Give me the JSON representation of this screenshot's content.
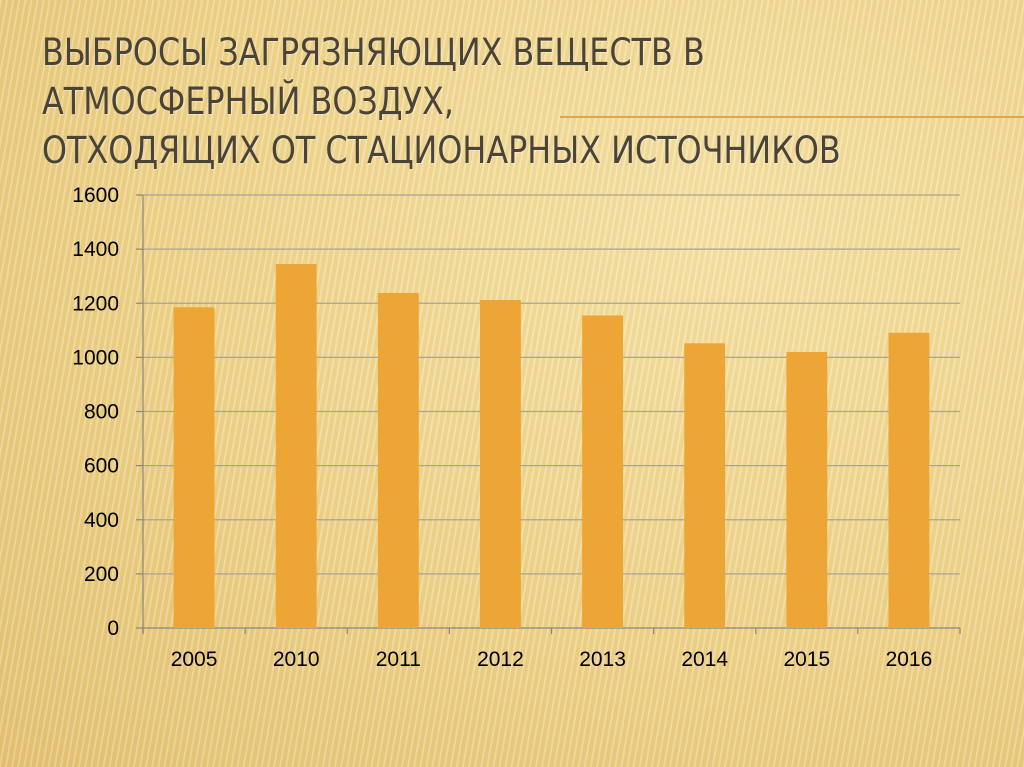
{
  "slide": {
    "title_lines": [
      "Выбросы загрязняющих веществ в",
      "атмосферный воздух,",
      "отходящих от стационарных источников"
    ]
  },
  "colors": {
    "bar": "#eda535",
    "grid": "#a8a496",
    "axis": "#8a877d",
    "title": "#4a4337"
  },
  "chart_data": {
    "type": "bar",
    "categories": [
      "2005",
      "2010",
      "2011",
      "2012",
      "2013",
      "2014",
      "2015",
      "2016"
    ],
    "values": [
      1185,
      1345,
      1238,
      1212,
      1155,
      1052,
      1020,
      1091
    ],
    "ylim": [
      0,
      1600
    ],
    "y_ticks": [
      0,
      200,
      400,
      600,
      800,
      1000,
      1200,
      1400,
      1600
    ],
    "grid": true,
    "legend": "none"
  }
}
